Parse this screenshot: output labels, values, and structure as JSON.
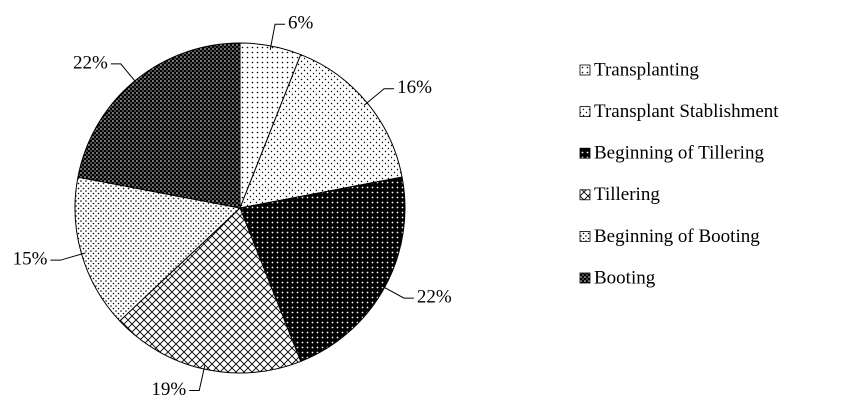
{
  "chart_data": {
    "type": "pie",
    "categories": [
      "Transplanting",
      "Transplant Stablishment",
      "Beginning of Tillering",
      "Tillering",
      "Beginning of Booting",
      "Booting"
    ],
    "values": [
      6,
      16,
      22,
      19,
      15,
      22
    ],
    "value_labels": [
      "6%",
      "16%",
      "22%",
      "19%",
      "15%",
      "22%"
    ],
    "patterns": [
      "dots-sparse",
      "dots-light",
      "dots-on-black",
      "crosshatch",
      "dots-medium",
      "dots-dense"
    ],
    "legend": "right"
  }
}
